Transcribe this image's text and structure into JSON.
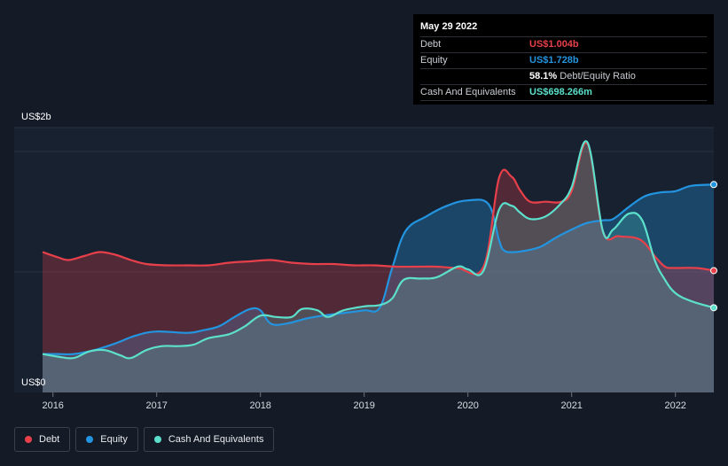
{
  "chart_data": {
    "type": "area",
    "y_top_label": "US$2b",
    "y_zero_label": "US$0",
    "ylim": [
      0,
      2.0
    ],
    "xlim": [
      2015.9,
      2022.37
    ],
    "x_ticks": [
      {
        "value": 2016.0,
        "label": "2016"
      },
      {
        "value": 2017.0,
        "label": "2017"
      },
      {
        "value": 2018.0,
        "label": "2018"
      },
      {
        "value": 2019.0,
        "label": "2019"
      },
      {
        "value": 2020.0,
        "label": "2020"
      },
      {
        "value": 2021.0,
        "label": "2021"
      },
      {
        "value": 2022.0,
        "label": "2022"
      }
    ],
    "series": [
      {
        "name": "Debt",
        "color": "#e8404a",
        "x": [
          2015.9,
          2016.05,
          2016.15,
          2016.3,
          2016.45,
          2016.6,
          2016.75,
          2016.9,
          2017.1,
          2017.3,
          2017.5,
          2017.7,
          2017.9,
          2018.1,
          2018.3,
          2018.5,
          2018.7,
          2018.9,
          2019.1,
          2019.3,
          2019.5,
          2019.7,
          2019.9,
          2020.15,
          2020.3,
          2020.42,
          2020.5,
          2020.6,
          2020.75,
          2020.9,
          2021.0,
          2021.15,
          2021.3,
          2021.45,
          2021.6,
          2021.7,
          2021.8,
          2021.9,
          2022.0,
          2022.2,
          2022.37
        ],
        "values": [
          1.06,
          1.02,
          1.0,
          1.03,
          1.06,
          1.04,
          1.0,
          0.97,
          0.96,
          0.96,
          0.96,
          0.98,
          0.99,
          1.0,
          0.98,
          0.97,
          0.97,
          0.96,
          0.96,
          0.95,
          0.95,
          0.95,
          0.94,
          0.95,
          1.62,
          1.63,
          1.53,
          1.44,
          1.44,
          1.44,
          1.52,
          1.88,
          1.22,
          1.18,
          1.17,
          1.13,
          1.03,
          0.95,
          0.94,
          0.94,
          0.92
        ]
      },
      {
        "name": "Equity",
        "color": "#2394df",
        "x": [
          2015.9,
          2016.05,
          2016.2,
          2016.4,
          2016.6,
          2016.8,
          2017.0,
          2017.3,
          2017.45,
          2017.6,
          2017.75,
          2017.9,
          2018.0,
          2018.1,
          2018.25,
          2018.45,
          2018.6,
          2018.8,
          2019.0,
          2019.15,
          2019.27,
          2019.4,
          2019.6,
          2019.8,
          2020.0,
          2020.2,
          2020.3,
          2020.35,
          2020.45,
          2020.55,
          2020.7,
          2020.85,
          2021.0,
          2021.15,
          2021.3,
          2021.4,
          2021.55,
          2021.7,
          2021.85,
          2022.0,
          2022.15,
          2022.37
        ],
        "values": [
          0.29,
          0.29,
          0.29,
          0.32,
          0.37,
          0.43,
          0.46,
          0.45,
          0.47,
          0.5,
          0.57,
          0.63,
          0.62,
          0.52,
          0.52,
          0.56,
          0.58,
          0.6,
          0.62,
          0.64,
          0.94,
          1.22,
          1.33,
          1.41,
          1.45,
          1.42,
          1.15,
          1.07,
          1.06,
          1.07,
          1.1,
          1.17,
          1.23,
          1.28,
          1.3,
          1.31,
          1.4,
          1.48,
          1.51,
          1.52,
          1.56,
          1.57
        ]
      },
      {
        "name": "Cash And Equivalents",
        "color": "#5ce0cc",
        "x": [
          2015.9,
          2016.05,
          2016.2,
          2016.35,
          2016.5,
          2016.65,
          2016.75,
          2016.9,
          2017.05,
          2017.2,
          2017.35,
          2017.5,
          2017.7,
          2017.85,
          2018.0,
          2018.15,
          2018.3,
          2018.4,
          2018.55,
          2018.65,
          2018.8,
          2019.0,
          2019.15,
          2019.27,
          2019.38,
          2019.55,
          2019.7,
          2019.9,
          2020.0,
          2020.15,
          2020.3,
          2020.42,
          2020.5,
          2020.6,
          2020.75,
          2020.9,
          2021.0,
          2021.15,
          2021.3,
          2021.4,
          2021.55,
          2021.68,
          2021.8,
          2021.9,
          2022.0,
          2022.15,
          2022.37
        ],
        "values": [
          0.29,
          0.27,
          0.26,
          0.31,
          0.32,
          0.28,
          0.26,
          0.32,
          0.35,
          0.35,
          0.36,
          0.41,
          0.44,
          0.5,
          0.58,
          0.57,
          0.57,
          0.63,
          0.62,
          0.57,
          0.62,
          0.65,
          0.66,
          0.71,
          0.85,
          0.86,
          0.87,
          0.95,
          0.93,
          0.92,
          1.38,
          1.41,
          1.36,
          1.31,
          1.33,
          1.43,
          1.55,
          1.89,
          1.22,
          1.23,
          1.35,
          1.3,
          1.0,
          0.85,
          0.75,
          0.69,
          0.64
        ]
      }
    ]
  },
  "tooltip": {
    "date": "May 29 2022",
    "rows": [
      {
        "label": "Debt",
        "value": "US$1.004b",
        "color": "#e8404a"
      },
      {
        "label": "Equity",
        "value": "US$1.728b",
        "color": "#2394df"
      },
      {
        "label": "",
        "value": "58.1%",
        "suffix": "Debt/Equity Ratio",
        "color": "#ffffff"
      },
      {
        "label": "Cash And Equivalents",
        "value": "US$698.266m",
        "color": "#5ce0cc"
      }
    ]
  },
  "legend": [
    {
      "label": "Debt",
      "color": "#e8404a"
    },
    {
      "label": "Equity",
      "color": "#2394df"
    },
    {
      "label": "Cash And Equivalents",
      "color": "#5ce0cc"
    }
  ]
}
